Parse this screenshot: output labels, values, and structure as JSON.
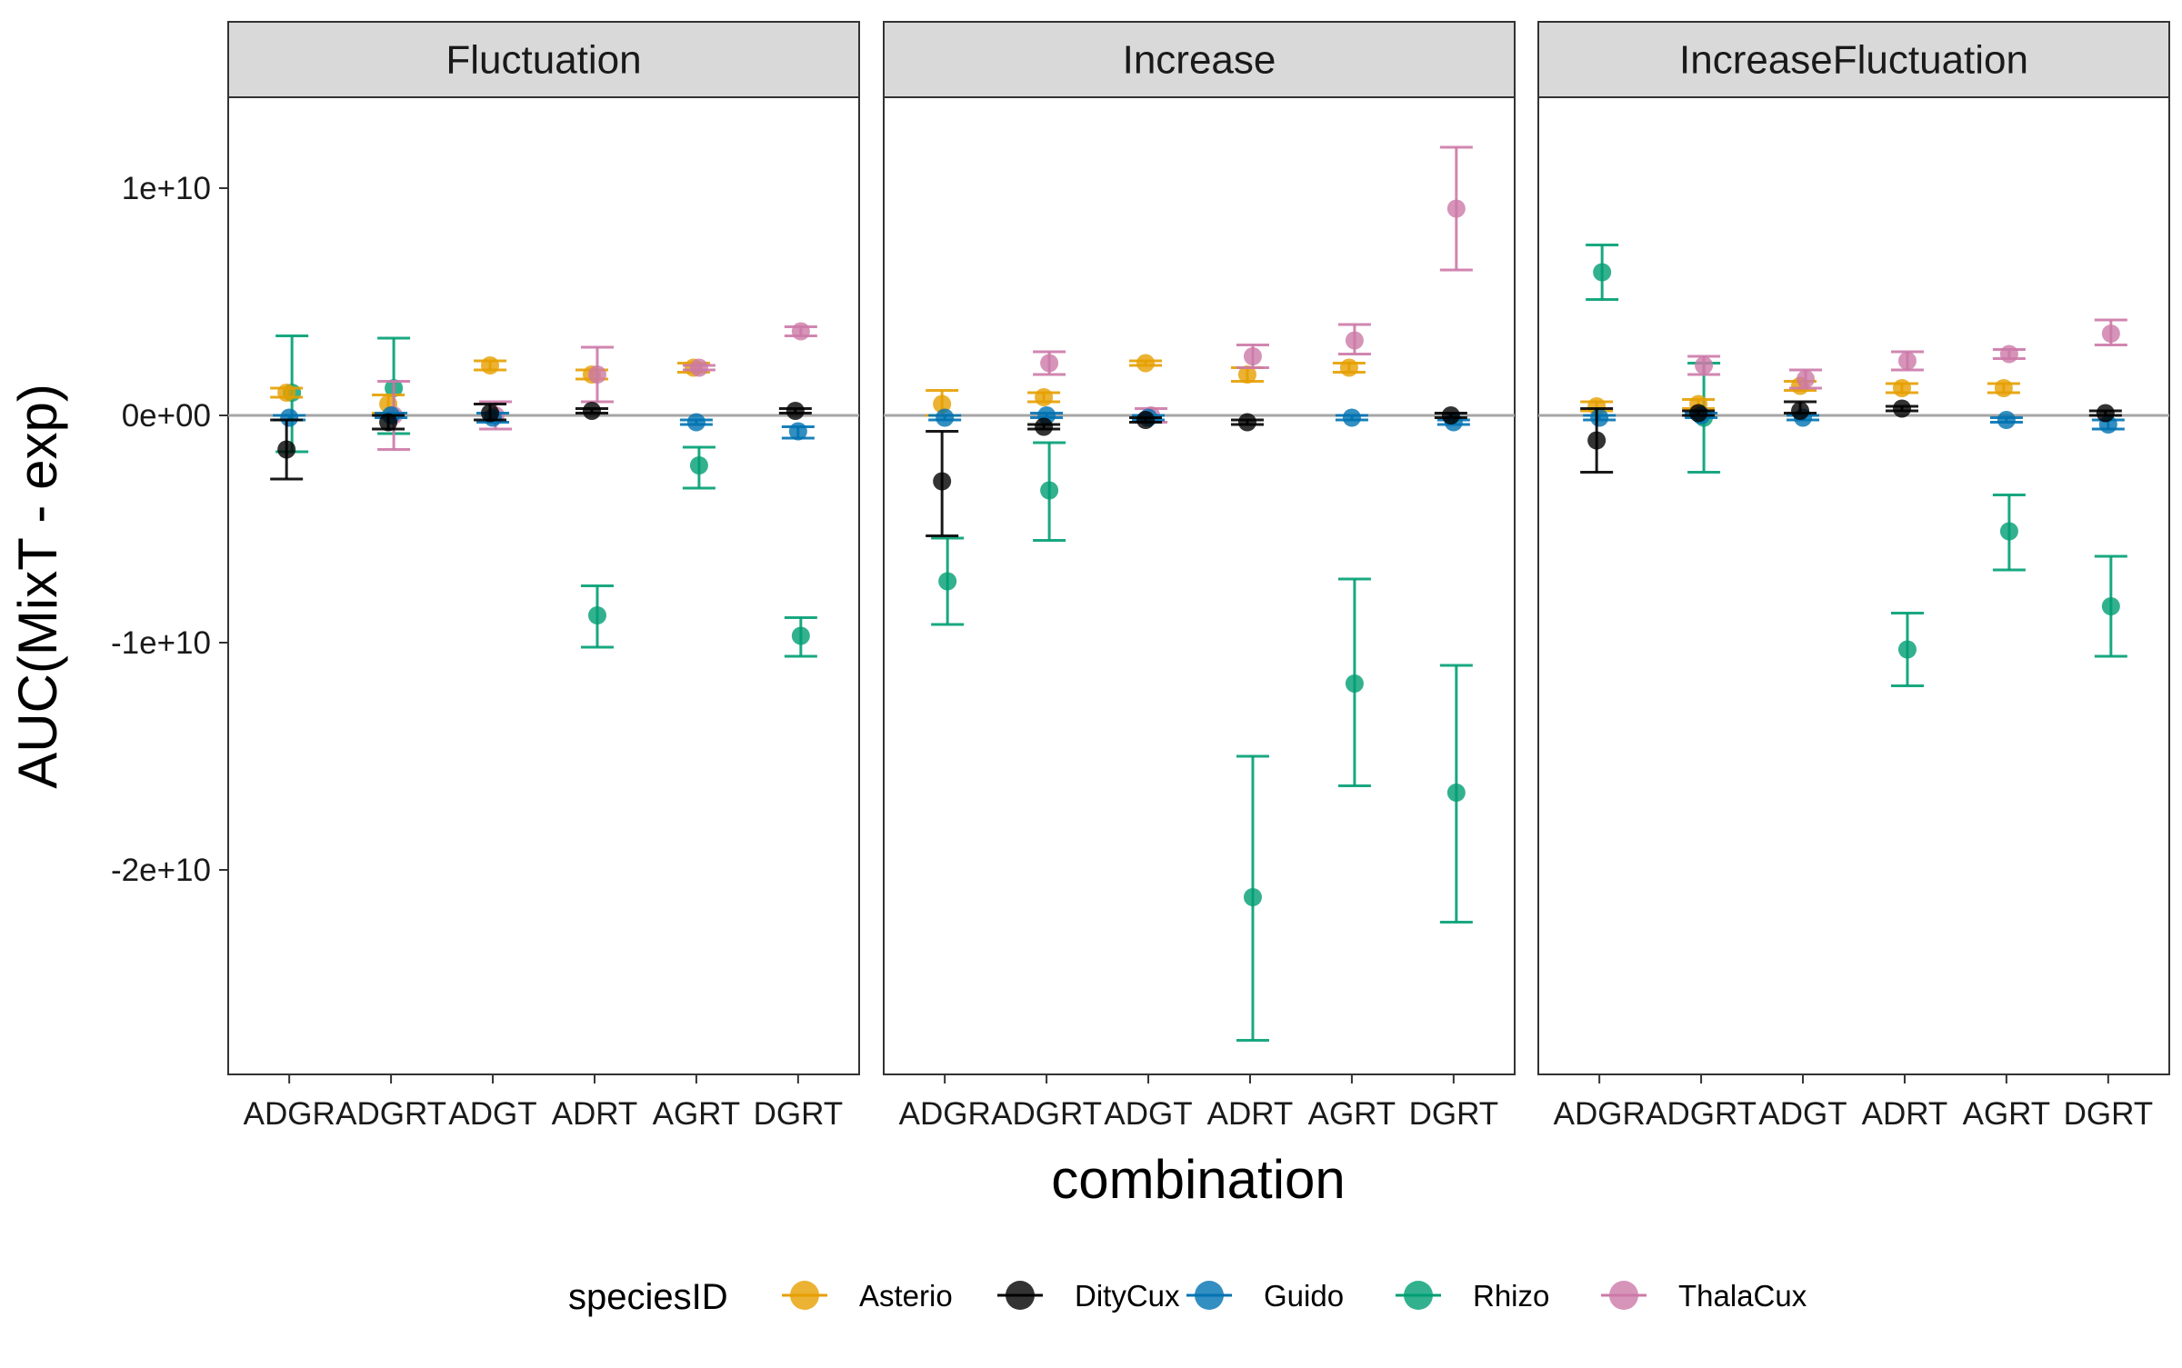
{
  "chart_data": {
    "type": "scatter",
    "subtype": "point-with-errorbars, faceted",
    "xlabel": "combination",
    "ylabel": "AUC(MixT - exp)",
    "categories": [
      "ADGR",
      "ADGRT",
      "ADGT",
      "ADRT",
      "AGRT",
      "DGRT"
    ],
    "ylim": [
      -29000000000.0,
      14000000000.0
    ],
    "yticks": [
      {
        "value": 10000000000.0,
        "label": "1e+10"
      },
      {
        "value": 0,
        "label": "0e+00"
      },
      {
        "value": -10000000000.0,
        "label": "-1e+10"
      },
      {
        "value": -20000000000.0,
        "label": "-2e+10"
      }
    ],
    "hline": 0,
    "grid": false,
    "facets": [
      "Fluctuation",
      "Increase",
      "IncreaseFluctuation"
    ],
    "legend": {
      "title": "speciesID",
      "position": "bottom",
      "entries": [
        "Asterio",
        "DityCux",
        "Guido",
        "Rhizo",
        "ThalaCux"
      ]
    },
    "series_colors": {
      "Asterio": "#E69F00",
      "DityCux": "#000000",
      "Guido": "#0072B2",
      "Rhizo": "#009E73",
      "ThalaCux": "#CC79A7"
    },
    "units": "values in units of 1e9",
    "data": {
      "Fluctuation": {
        "Asterio": [
          [
            1.0,
            0.8,
            1.2
          ],
          [
            0.5,
            0.1,
            0.9
          ],
          [
            2.2,
            2.0,
            2.4
          ],
          [
            1.8,
            1.6,
            2.0
          ],
          [
            2.1,
            1.9,
            2.3
          ],
          null
        ],
        "DityCux": [
          [
            -1.5,
            -2.8,
            -0.2
          ],
          [
            -0.3,
            -0.6,
            0
          ],
          [
            0.1,
            -0.2,
            0.5
          ],
          [
            0.2,
            0.1,
            0.3
          ],
          null,
          [
            0.2,
            0.1,
            0.3
          ]
        ],
        "Guido": [
          [
            -0.1,
            -0.2,
            0
          ],
          [
            0,
            -0.1,
            0.1
          ],
          [
            -0.1,
            -0.3,
            0.1
          ],
          null,
          [
            -0.3,
            -0.4,
            -0.2
          ],
          [
            -0.7,
            -1.0,
            -0.5
          ]
        ],
        "Rhizo": [
          [
            1.0,
            -1.6,
            3.5
          ],
          [
            1.2,
            -0.8,
            3.4
          ],
          null,
          [
            -8.8,
            -10.2,
            -7.5
          ],
          [
            -2.2,
            -3.2,
            -1.4
          ],
          [
            -9.7,
            -10.6,
            -8.9
          ]
        ],
        "ThalaCux": [
          [
            null
          ],
          [
            0,
            -1.5,
            1.5
          ],
          [
            0,
            -0.6,
            0.6
          ],
          [
            1.8,
            0.6,
            3.0
          ],
          [
            2.1,
            2.0,
            2.2
          ],
          [
            3.7,
            3.5,
            3.9
          ]
        ]
      },
      "Increase": {
        "Asterio": [
          [
            0.5,
            0,
            1.1
          ],
          [
            0.8,
            0.6,
            1.0
          ],
          [
            2.3,
            2.2,
            2.4
          ],
          [
            1.8,
            1.5,
            2.1
          ],
          [
            2.1,
            1.9,
            2.3
          ],
          null
        ],
        "DityCux": [
          [
            -2.9,
            -5.3,
            -0.7
          ],
          [
            -0.5,
            -0.6,
            -0.4
          ],
          [
            -0.2,
            -0.3,
            -0.1
          ],
          [
            -0.3,
            -0.4,
            -0.2
          ],
          null,
          [
            0,
            -0.1,
            0.1
          ]
        ],
        "Guido": [
          [
            -0.1,
            -0.2,
            0
          ],
          [
            0,
            -0.1,
            0.1
          ],
          [
            -0.1,
            -0.2,
            0
          ],
          null,
          [
            -0.1,
            -0.2,
            0
          ],
          [
            -0.3,
            -0.4,
            -0.2
          ]
        ],
        "Rhizo": [
          [
            -7.3,
            -9.2,
            -5.4
          ],
          [
            -3.3,
            -5.5,
            -1.2
          ],
          null,
          [
            -21.2,
            -27.5,
            -15.0
          ],
          [
            -11.8,
            -16.3,
            -7.2
          ],
          [
            -16.6,
            -22.3,
            -11.0
          ]
        ],
        "ThalaCux": [
          [
            null
          ],
          [
            2.3,
            1.8,
            2.8
          ],
          [
            0,
            -0.3,
            0.3
          ],
          [
            2.6,
            2.1,
            3.1
          ],
          [
            3.3,
            2.7,
            4.0
          ],
          [
            9.1,
            6.4,
            11.8
          ]
        ]
      },
      "IncreaseFluctuation": {
        "Asterio": [
          [
            0.4,
            0.2,
            0.6
          ],
          [
            0.5,
            0.3,
            0.7
          ],
          [
            1.3,
            1.1,
            1.5
          ],
          [
            1.2,
            1.0,
            1.4
          ],
          [
            1.2,
            1.0,
            1.4
          ],
          null
        ],
        "DityCux": [
          [
            -1.1,
            -2.5,
            0.3
          ],
          [
            0.1,
            0,
            0.2
          ],
          [
            0.2,
            0.1,
            0.6
          ],
          [
            0.3,
            0.2,
            0.4
          ],
          null,
          [
            0.1,
            0,
            0.2
          ]
        ],
        "Guido": [
          [
            -0.1,
            -0.2,
            0
          ],
          [
            0,
            -0.1,
            0.1
          ],
          [
            -0.1,
            -0.2,
            0
          ],
          null,
          [
            -0.2,
            -0.3,
            -0.1
          ],
          [
            -0.4,
            -0.6,
            -0.2
          ]
        ],
        "Rhizo": [
          [
            6.3,
            5.1,
            7.5
          ],
          [
            -0.1,
            -2.5,
            2.3
          ],
          null,
          [
            -10.3,
            -11.9,
            -8.7
          ],
          [
            -5.1,
            -6.8,
            -3.5
          ],
          [
            -8.4,
            -10.6,
            -6.2
          ]
        ],
        "ThalaCux": [
          [
            null
          ],
          [
            2.2,
            1.8,
            2.6
          ],
          [
            1.6,
            1.2,
            2.0
          ],
          [
            2.4,
            2.0,
            2.8
          ],
          [
            2.7,
            2.5,
            2.9
          ],
          [
            3.6,
            3.1,
            4.2
          ]
        ]
      }
    }
  }
}
